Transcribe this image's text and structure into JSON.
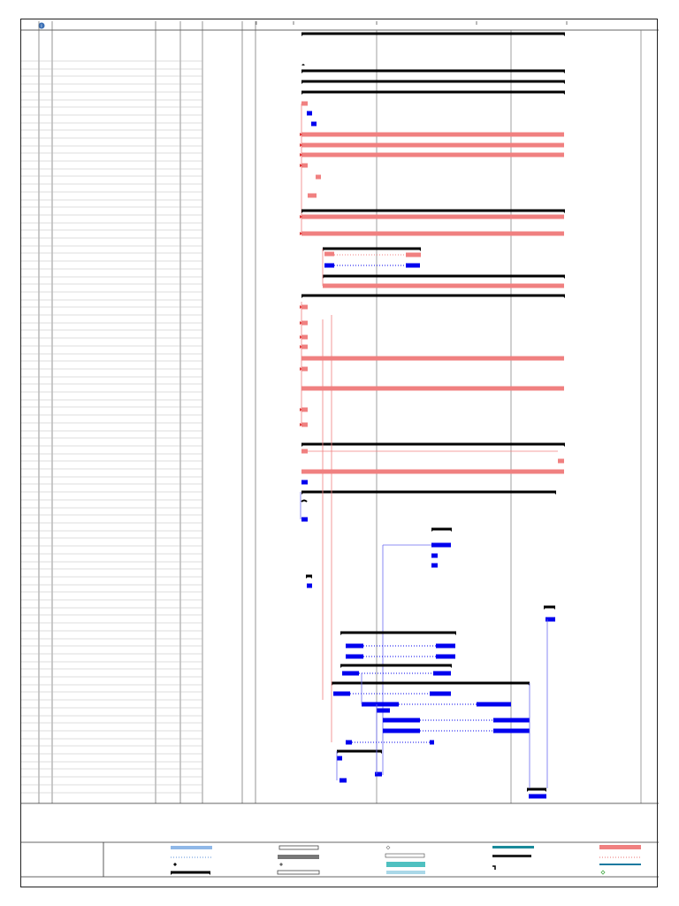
{
  "header": {
    "info_icon": "info-icon",
    "info_icon_color": "#3a6fb5"
  },
  "colors": {
    "summary_bar": "#000000",
    "critical_task": "#f08080",
    "task": "#0000ee",
    "link_critical": "#f08080",
    "link_normal": "#6a6af0",
    "gridline": "#777777"
  },
  "legend": {
    "swatches": [
      "task",
      "split",
      "milestone",
      "summary",
      "project-summary",
      "inactive-task",
      "inactive-milestone",
      "inactive-summary",
      "manual-task",
      "duration-only",
      "manual-summary-rollup",
      "manual-summary",
      "start-only",
      "finish-only",
      "deadline",
      "progress",
      "critical",
      "critical-split",
      "external-milestone"
    ]
  }
}
